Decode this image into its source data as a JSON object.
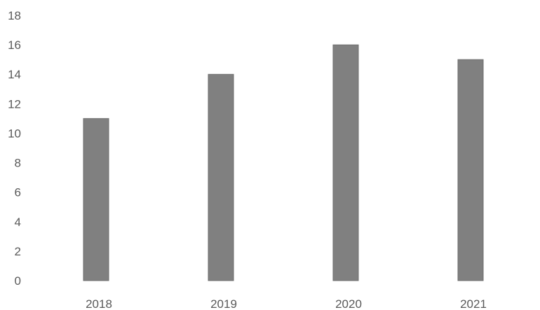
{
  "chart_data": {
    "type": "bar",
    "categories": [
      "2018",
      "2019",
      "2020",
      "2021"
    ],
    "values": [
      11,
      14,
      16,
      15
    ],
    "ylim": [
      0,
      18
    ],
    "ytick_step": 2,
    "title": "",
    "xlabel": "",
    "ylabel": "",
    "grid": false,
    "legend": "none",
    "bar_color": "#808080",
    "text_color": "#595959"
  }
}
